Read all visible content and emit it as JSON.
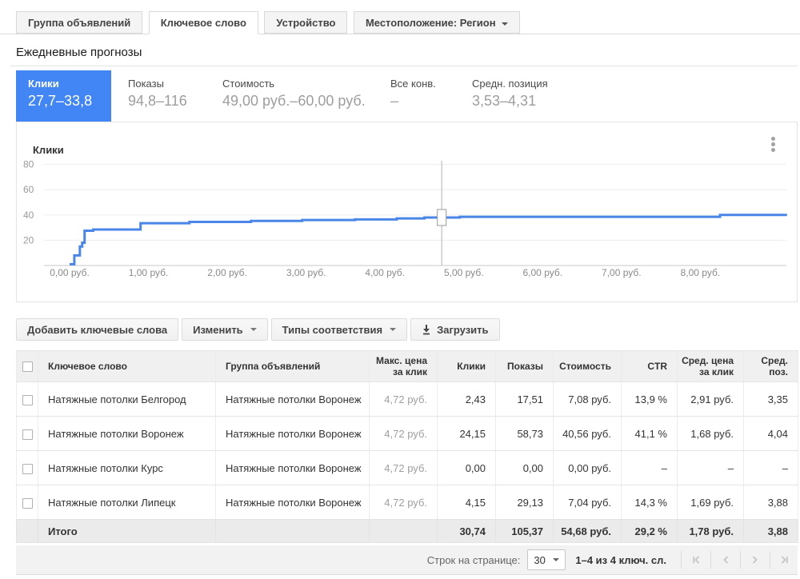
{
  "tabs": [
    {
      "label": "Группа объявлений",
      "active": false
    },
    {
      "label": "Ключевое слово",
      "active": true
    },
    {
      "label": "Устройство",
      "active": false
    },
    {
      "label": "Местоположение: Регион",
      "active": false,
      "has_caret": true
    }
  ],
  "page": {
    "title": "Ежедневные прогнозы"
  },
  "metrics": [
    {
      "label": "Клики",
      "value": "27,7–33,8",
      "active": true
    },
    {
      "label": "Показы",
      "value": "94,8–116",
      "active": false
    },
    {
      "label": "Стоимость",
      "value": "49,00 руб.–60,00 руб.",
      "active": false
    },
    {
      "label": "Все конв.",
      "value": "–",
      "active": false
    },
    {
      "label": "Средн. позиция",
      "value": "3,53–4,31",
      "active": false
    }
  ],
  "colors": {
    "accent_blue": "#4285f4",
    "chart_line": "#4a86e8"
  },
  "chart": {
    "title": "Клики",
    "menu_icon": "kebab-menu-icon",
    "chart_data": {
      "type": "line",
      "subtype": "step-after",
      "title": "Клики",
      "x_ticks": [
        "0,00 руб.",
        "1,00 руб.",
        "2,00 руб.",
        "3,00 руб.",
        "4,00 руб.",
        "5,00 руб.",
        "6,00 руб.",
        "7,00 руб.",
        "8,00 руб."
      ],
      "x_range": [
        0,
        9.1
      ],
      "y_ticks": [
        20,
        40,
        60,
        80
      ],
      "y_range": [
        0,
        85
      ],
      "grid": true,
      "series": [
        {
          "name": "Клики",
          "color": "#4a86e8",
          "points": [
            [
              0,
              1
            ],
            [
              0.06,
              8
            ],
            [
              0.13,
              15
            ],
            [
              0.16,
              18
            ],
            [
              0.19,
              27.5
            ],
            [
              0.3,
              28.5
            ],
            [
              0.9,
              33.5
            ],
            [
              1.52,
              34.5
            ],
            [
              2.3,
              35.3
            ],
            [
              2.95,
              36
            ],
            [
              3.62,
              36.5
            ],
            [
              4.15,
              37.3
            ],
            [
              4.5,
              38
            ],
            [
              4.95,
              38.5
            ],
            [
              8.25,
              40
            ]
          ],
          "end_x": 9.1
        }
      ],
      "slider": {
        "x": 4.72,
        "y": 38
      }
    }
  },
  "toolbar": {
    "buttons": [
      {
        "label": "Добавить ключевые слова"
      },
      {
        "label": "Изменить",
        "has_caret": true
      },
      {
        "label": "Типы соответствия",
        "has_caret": true
      },
      {
        "label": "Загрузить",
        "icon": "download-icon"
      }
    ]
  },
  "table": {
    "headers": {
      "keyword": "Ключевое слово",
      "ad_group": "Группа объявлений",
      "max_cpc_line1": "Макс. цена",
      "max_cpc_line2": "за клик",
      "clicks": "Клики",
      "impressions": "Показы",
      "cost": "Стоимость",
      "ctr": "CTR",
      "avg_cpc_line1": "Сред. цена",
      "avg_cpc_line2": "за клик",
      "avg_pos": "Сред. поз."
    },
    "rows": [
      {
        "keyword": "Натяжные потолки Белгород",
        "ad_group": "Натяжные потолки Воронеж",
        "max_cpc": "4,72 руб.",
        "clicks": "2,43",
        "impressions": "17,51",
        "cost": "7,08 руб.",
        "ctr": "13,9 %",
        "avg_cpc": "2,91 руб.",
        "avg_pos": "3,35"
      },
      {
        "keyword": "Натяжные потолки Воронеж",
        "ad_group": "Натяжные потолки Воронеж",
        "max_cpc": "4,72 руб.",
        "clicks": "24,15",
        "impressions": "58,73",
        "cost": "40,56 руб.",
        "ctr": "41,1 %",
        "avg_cpc": "1,68 руб.",
        "avg_pos": "4,04"
      },
      {
        "keyword": "Натяжные потолки Курс",
        "ad_group": "Натяжные потолки Воронеж",
        "max_cpc": "4,72 руб.",
        "clicks": "0,00",
        "impressions": "0,00",
        "cost": "0,00 руб.",
        "ctr": "–",
        "avg_cpc": "–",
        "avg_pos": "–"
      },
      {
        "keyword": "Натяжные потолки Липецк",
        "ad_group": "Натяжные потолки Воронеж",
        "max_cpc": "4,72 руб.",
        "clicks": "4,15",
        "impressions": "29,13",
        "cost": "7,04 руб.",
        "ctr": "14,3 %",
        "avg_cpc": "1,69 руб.",
        "avg_pos": "3,88"
      }
    ],
    "total": {
      "label": "Итого",
      "clicks": "30,74",
      "impressions": "105,37",
      "cost": "54,68 руб.",
      "ctr": "29,2 %",
      "avg_cpc": "1,78 руб.",
      "avg_pos": "3,88"
    }
  },
  "footer": {
    "rows_per_page_label": "Строк на странице:",
    "rows_per_page_value": "30",
    "range_text": "1–4 из 4 ключ. сл.",
    "pagination": [
      "first-page-icon",
      "previous-page-icon",
      "next-page-icon",
      "last-page-icon"
    ]
  }
}
